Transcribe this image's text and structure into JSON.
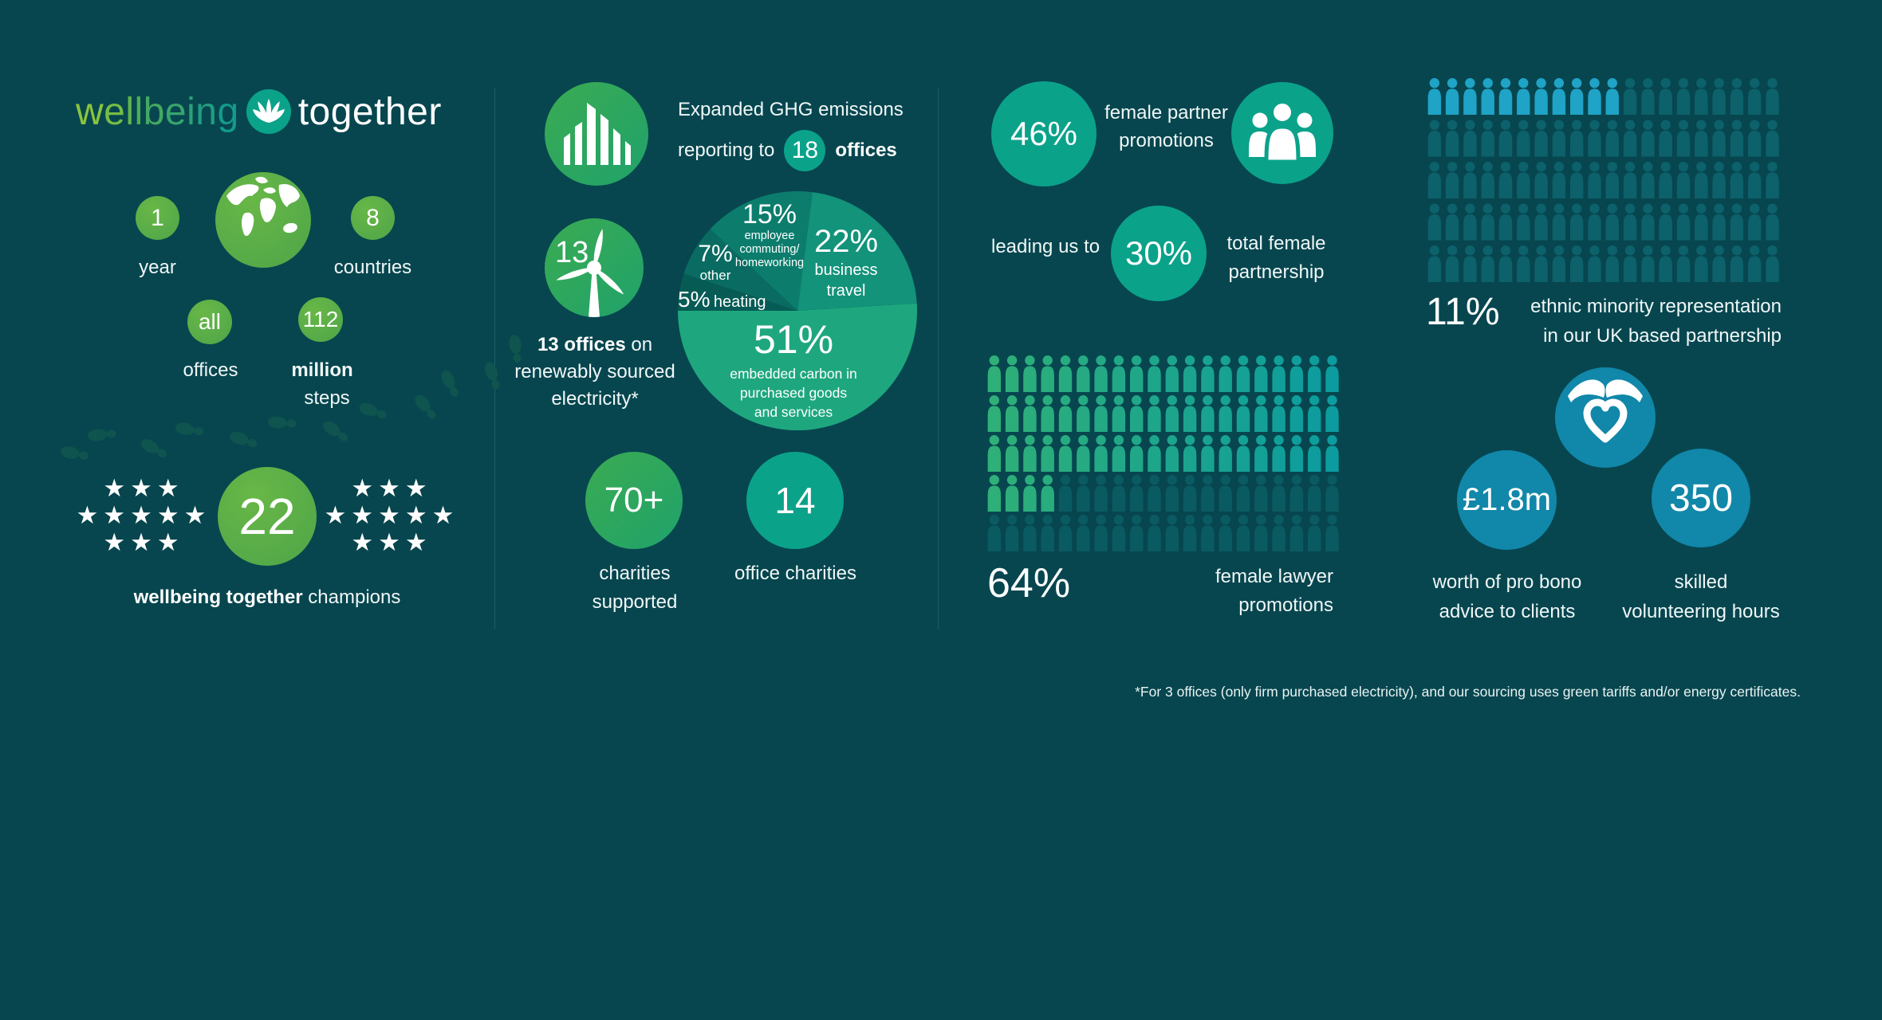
{
  "colors": {
    "background": "#07464F",
    "green-light": "#68B747",
    "green-dark": "#4EA548",
    "emerald-light": "#3BAB52",
    "emerald-dark": "#1FA26B",
    "teal-circle": "#0BA28A",
    "blue-circle": "#1187A9",
    "divider": "#1A5D66",
    "footprint": "#0F544E",
    "text": "#FFFFFF"
  },
  "logo": {
    "part1": "well",
    "part2": "being",
    "part3": "together",
    "icon": "lotus-icon"
  },
  "wellbeing": {
    "year": {
      "value": "1",
      "label": "year"
    },
    "countries": {
      "value": "8",
      "label": "countries"
    },
    "offices": {
      "value": "all",
      "label": "offices"
    },
    "steps": {
      "value": "112",
      "label_bold": "million",
      "label": "steps"
    },
    "champions": {
      "value": "22",
      "bold": "wellbeing together",
      "rest": " champions",
      "stars_per_side": 11
    },
    "stars": {
      "row3": "★★★",
      "row5": "★★★★★"
    }
  },
  "environment": {
    "ghg_line1": "Expanded GHG emissions",
    "ghg_line2_pre": "reporting to",
    "ghg_value": "18",
    "ghg_line2_post": "offices",
    "turbine_value": "13",
    "renewable_bold": "13 offices",
    "renewable_rest": " on",
    "renewable_line2": "renewably sourced",
    "renewable_line3": "electricity*",
    "charities_value": "70+",
    "charities_line1": "charities",
    "charities_line2": "supported",
    "office_charities_value": "14",
    "office_charities_label": "office charities"
  },
  "diversity": {
    "partner_value": "46%",
    "partner_line1": "female partner",
    "partner_line2": "promotions",
    "leading": "leading us to",
    "partnership_value": "30%",
    "partnership_line1": "total female",
    "partnership_line2": "partnership",
    "lawyer_line1": "female lawyer",
    "lawyer_line2": "promotions"
  },
  "community": {
    "ethnic_line1": "ethnic minority representation",
    "ethnic_line2": "in our UK based partnership",
    "probono_value": "£1.8m",
    "probono_line1": "worth of pro bono",
    "probono_line2": "advice to clients",
    "volunteer_value": "350",
    "volunteer_line1": "skilled",
    "volunteer_line2": "volunteering hours"
  },
  "footnote": "*For 3 offices (only firm purchased electricity), and our sourcing uses green tariffs and/or energy certificates.",
  "chart_data": [
    {
      "type": "pie",
      "title": "Expanded GHG emissions breakdown",
      "start_position": "9-oclock",
      "direction": "counterclockwise",
      "slices": [
        {
          "pct_label": "51%",
          "value": 51,
          "label": "embedded carbon in purchased goods and services",
          "lines": [
            "embedded carbon in",
            "purchased goods",
            "and services"
          ],
          "color": "#1EA77E"
        },
        {
          "pct_label": "22%",
          "value": 22,
          "label": "business travel",
          "lines": [
            "business",
            "travel"
          ],
          "color": "#12937A"
        },
        {
          "pct_label": "15%",
          "value": 15,
          "label": "employee commuting/homeworking",
          "lines": [
            "employee",
            "commuting/",
            "homeworking"
          ],
          "color": "#0C7D6D"
        },
        {
          "pct_label": "7%",
          "value": 7,
          "label": "other",
          "lines": [
            "other"
          ],
          "color": "#096B61"
        },
        {
          "pct_label": "5%",
          "value": 5,
          "label": "heating",
          "lines": [
            "heating"
          ],
          "color": "#075B55"
        }
      ]
    },
    {
      "type": "pictogram",
      "pct_label": "64%",
      "value": 64,
      "total": 100,
      "rows": 5,
      "cols": 20,
      "label": "female lawyer promotions",
      "highlight_colors": [
        "#2FB077",
        "#0B9BA0"
      ],
      "dim_color": "#0A5A62"
    },
    {
      "type": "pictogram",
      "pct_label": "11%",
      "value": 11,
      "total": 100,
      "rows": 5,
      "cols": 20,
      "label": "ethnic minority representation in our UK based partnership",
      "highlight_colors": [
        "#1FA3C6",
        "#1FA3C6"
      ],
      "dim_color": "#0C616B"
    }
  ]
}
